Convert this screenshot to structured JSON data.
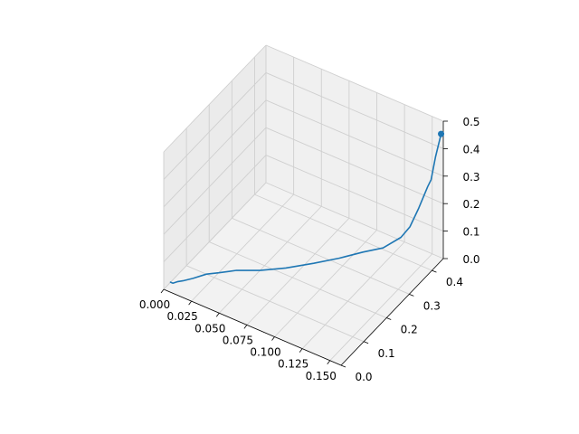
{
  "chart_data": {
    "type": "line",
    "projection": "3d",
    "title": "",
    "xlabel": "",
    "ylabel": "",
    "zlabel": "",
    "xlim": [
      0.0,
      0.16
    ],
    "ylim": [
      0.0,
      0.45
    ],
    "zlim": [
      0.0,
      0.5
    ],
    "x_ticks": [
      "0.000",
      "0.025",
      "0.050",
      "0.075",
      "0.100",
      "0.125",
      "0.150"
    ],
    "y_ticks": [
      "0.0",
      "0.1",
      "0.2",
      "0.3",
      "0.4"
    ],
    "z_ticks": [
      "0.0",
      "0.1",
      "0.2",
      "0.3",
      "0.4",
      "0.5"
    ],
    "grid": true,
    "series": [
      {
        "color": "#1f77b4",
        "end_marker": "circle",
        "points": [
          {
            "x": 0.0,
            "y": 0.03,
            "z": 0.0
          },
          {
            "x": 0.002,
            "y": 0.03,
            "z": 0.0
          },
          {
            "x": 0.004,
            "y": 0.04,
            "z": 0.0
          },
          {
            "x": 0.007,
            "y": 0.05,
            "z": 0.0
          },
          {
            "x": 0.012,
            "y": 0.07,
            "z": 0.0
          },
          {
            "x": 0.018,
            "y": 0.1,
            "z": 0.0
          },
          {
            "x": 0.025,
            "y": 0.12,
            "z": 0.0
          },
          {
            "x": 0.035,
            "y": 0.15,
            "z": 0.0
          },
          {
            "x": 0.05,
            "y": 0.18,
            "z": 0.0
          },
          {
            "x": 0.065,
            "y": 0.22,
            "z": 0.0
          },
          {
            "x": 0.08,
            "y": 0.27,
            "z": 0.0
          },
          {
            "x": 0.095,
            "y": 0.31,
            "z": 0.01
          },
          {
            "x": 0.108,
            "y": 0.35,
            "z": 0.02
          },
          {
            "x": 0.12,
            "y": 0.38,
            "z": 0.03
          },
          {
            "x": 0.13,
            "y": 0.41,
            "z": 0.06
          },
          {
            "x": 0.136,
            "y": 0.42,
            "z": 0.1
          },
          {
            "x": 0.142,
            "y": 0.43,
            "z": 0.17
          },
          {
            "x": 0.148,
            "y": 0.44,
            "z": 0.25
          },
          {
            "x": 0.151,
            "y": 0.44,
            "z": 0.28
          },
          {
            "x": 0.155,
            "y": 0.44,
            "z": 0.37
          },
          {
            "x": 0.158,
            "y": 0.45,
            "z": 0.45
          }
        ]
      }
    ]
  }
}
